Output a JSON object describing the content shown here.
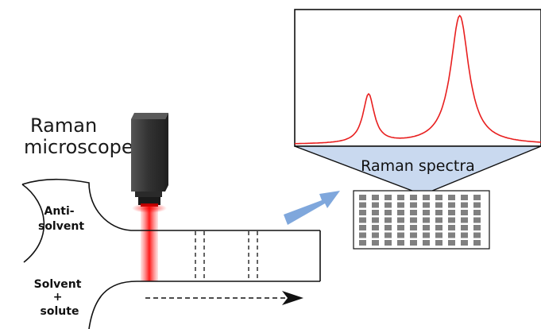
{
  "labels": {
    "raman_microscope": [
      "Raman",
      "microscope"
    ],
    "anti_solvent": [
      "Anti-",
      "solvent"
    ],
    "solvent_solute": [
      "Solvent",
      "+",
      "solute"
    ],
    "raman_spectra": "Raman spectra"
  },
  "colors": {
    "laser": "#ff2a2a",
    "spectrum_line": "#e81f1f",
    "funnel_fill": "#c9d9ef",
    "arrow_blue": "#7fa7dc",
    "grid_cell": "#808080",
    "camera_body": "#3a3a3a"
  },
  "icons": {
    "microscope": "raman-microscope-icon",
    "flow_arrow": "flow-direction-arrow-icon",
    "transfer_arrow": "transfer-arrow-icon"
  },
  "spectrum": {
    "peaks": [
      {
        "center": 0.3,
        "height": 0.38
      },
      {
        "center": 0.67,
        "height": 1.0
      }
    ]
  },
  "sample_grid": {
    "rows": 7,
    "cols": 10
  }
}
